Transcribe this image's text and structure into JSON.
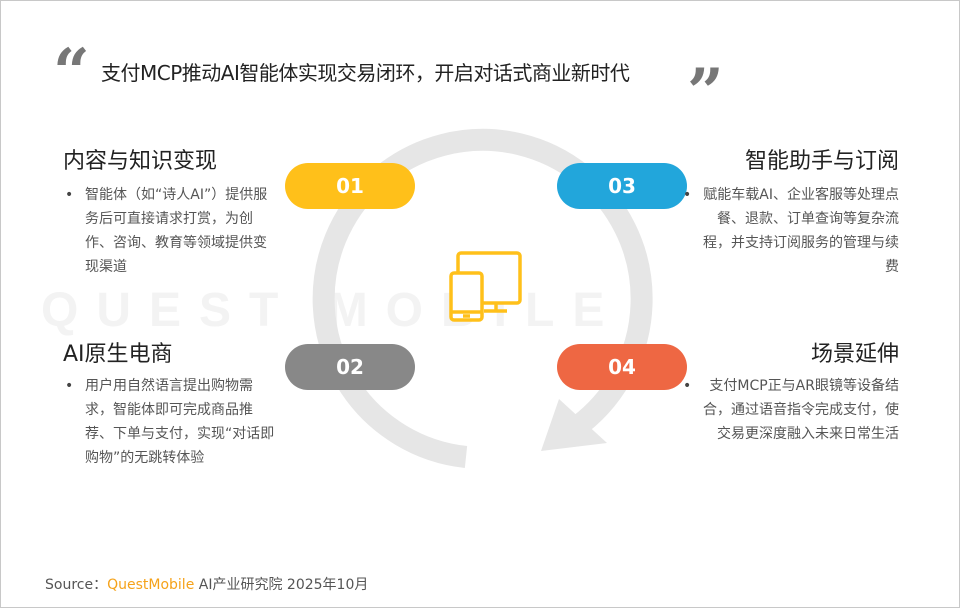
{
  "title": "支付MCP推动AI智能体实现交易闭环，开启对话式商业新时代",
  "watermark": "QUEST MOBILE",
  "colors": {
    "yellow": "#FFC01A",
    "blue": "#22A6DB",
    "gray": "#888888",
    "orange": "#EE6743",
    "ring": "#E6E6E6"
  },
  "center_icon": "devices-icon",
  "items": [
    {
      "num": "01",
      "heading": "内容与知识变现",
      "text": "智能体（如“诗人AI”）提供服务后可直接请求打赏，为创作、咨询、教育等领域提供变现渠道"
    },
    {
      "num": "02",
      "heading": "AI原生电商",
      "text": "用户用自然语言提出购物需求，智能体即可完成商品推荐、下单与支付，实现“对话即购物”的无跳转体验"
    },
    {
      "num": "03",
      "heading": "智能助手与订阅",
      "text": "赋能车载AI、企业客服等处理点餐、退款、订单查询等复杂流程，并支持订阅服务的管理与续费"
    },
    {
      "num": "04",
      "heading": "场景延伸",
      "text": "支付MCP正与AR眼镜等设备结合，通过语音指令完成支付，使交易更深度融入未来日常生活"
    }
  ],
  "footer": {
    "label": "Source：",
    "brand": "QuestMobile",
    "rest": " AI产业研究院 2025年10月"
  }
}
